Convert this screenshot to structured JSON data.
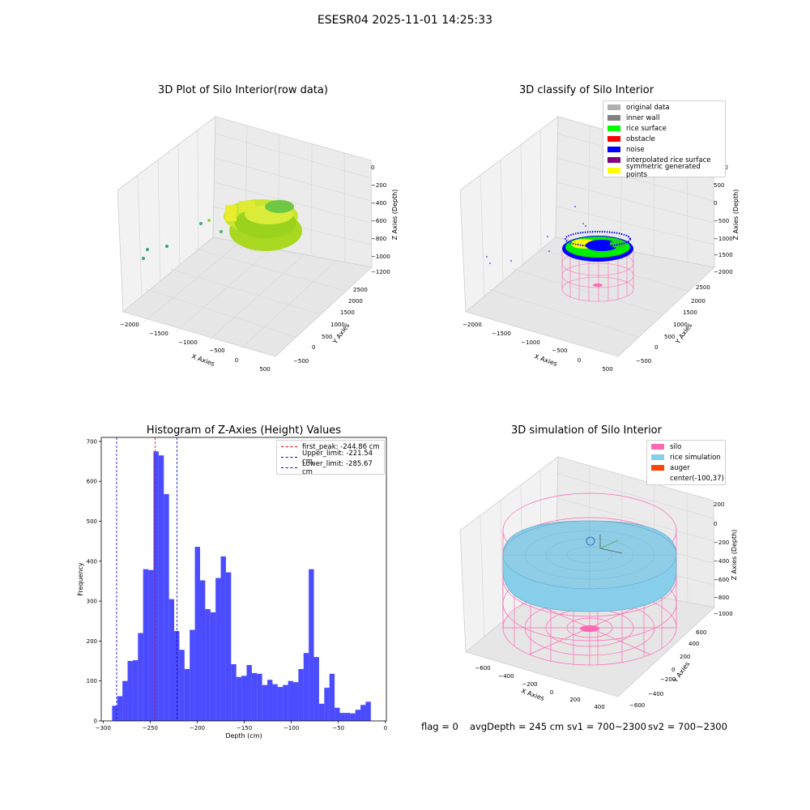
{
  "suptitle": "ESESR04 2025-11-01 14:25:33",
  "footer": {
    "flag": "flag = 0",
    "avg": "avgDepth = 245 cm",
    "sv1": "sv1 = 700~2300",
    "sv2": "sv2 = 700~2300"
  },
  "colors": {
    "histogram_bar": "#0000ff",
    "first_peak": "#ff0000",
    "limits": "#0000cc",
    "silo_wire": "#ff69b4",
    "rice": "#87ceeb",
    "pane": "#f2f2f2",
    "grid": "#dcdcdc"
  },
  "chart_data": [
    {
      "type": "scatter3d",
      "title": "3D Plot of Silo Interior(row data)",
      "xlabel": "X Axies",
      "ylabel": "Y Axies",
      "zlabel": "Z Axies (Depth)",
      "xticks": [
        "−2000",
        "−1500",
        "−1000",
        "−500",
        "0",
        "500"
      ],
      "yticks": [
        "−500",
        "0",
        "500",
        "1000",
        "1500",
        "2000",
        "2500"
      ],
      "zticks": [
        "0",
        "−200",
        "−400",
        "−600",
        "−800",
        "−1000",
        "−1200"
      ]
    },
    {
      "type": "scatter3d",
      "title": "3D classify of Silo Interior",
      "xlabel": "X Axies",
      "ylabel": "Y Axies",
      "zlabel": "Z Axies (Depth)",
      "xticks": [
        "−2000",
        "−1500",
        "−1000",
        "−500",
        "0",
        "500"
      ],
      "yticks": [
        "−500",
        "0",
        "500",
        "1000",
        "1500",
        "2000",
        "2500"
      ],
      "zticks": [
        "1000",
        "500",
        "0",
        "−500",
        "−1000",
        "−1500",
        "−2000"
      ],
      "legend": [
        {
          "label": "original data",
          "color": "#b0b0b0"
        },
        {
          "label": "inner wall",
          "color": "#808080"
        },
        {
          "label": "rice surface",
          "color": "#00ff00"
        },
        {
          "label": "obstacle",
          "color": "#ff0000"
        },
        {
          "label": "noise",
          "color": "#0000ff"
        },
        {
          "label": "interpolated rice surface",
          "color": "#800080"
        },
        {
          "label": "symmetric generated points",
          "color": "#ffff00"
        }
      ]
    },
    {
      "type": "bar",
      "title": "Histogram of Z-Axies (Height) Values",
      "xlabel": "Depth (cm)",
      "ylabel": "Frequency",
      "xlim": [
        -302,
        1
      ],
      "ylim": [
        0,
        710
      ],
      "xticks": [
        -300,
        -250,
        -200,
        -150,
        -100,
        -50,
        0
      ],
      "yticks": [
        0,
        100,
        200,
        300,
        400,
        500,
        600,
        700
      ],
      "bin_start": -290.5,
      "bin_width": 5.5,
      "values": [
        38,
        62,
        100,
        150,
        152,
        220,
        380,
        378,
        675,
        665,
        568,
        305,
        225,
        178,
        130,
        228,
        436,
        352,
        280,
        272,
        358,
        412,
        372,
        142,
        110,
        113,
        140,
        120,
        118,
        90,
        103,
        92,
        85,
        90,
        100,
        97,
        130,
        170,
        380,
        160,
        43,
        83,
        118,
        33,
        20,
        20,
        19,
        28,
        40,
        48
      ],
      "lines": [
        {
          "label": "first_peak: -244.86 cm",
          "x": -244.86,
          "color": "#ff0000"
        },
        {
          "label": "Upper_limit: -221.54 cm",
          "x": -221.54,
          "color": "#0000cc"
        },
        {
          "label": "Lower_limit: -285.67 cm",
          "x": -285.67,
          "color": "#0000cc"
        }
      ]
    },
    {
      "type": "surface3d",
      "title": "3D simulation of Silo Interior",
      "xlabel": "X Axies",
      "ylabel": "Y Axies",
      "zlabel": "Z Axies (Depth)",
      "xticks": [
        "−600",
        "−400",
        "−200",
        "0",
        "200",
        "400"
      ],
      "yticks": [
        "−600",
        "−400",
        "−200",
        "0",
        "200",
        "400",
        "600"
      ],
      "zticks": [
        "200",
        "0",
        "−200",
        "−400",
        "−600",
        "−800",
        "−1000"
      ],
      "legend": [
        {
          "label": "silo",
          "color": "#ff69b4"
        },
        {
          "label": "rice simulation",
          "color": "#87ceeb"
        },
        {
          "label": "auger",
          "color": "#ff4500"
        },
        {
          "label": "center(-100,37)",
          "color": ""
        }
      ]
    }
  ]
}
